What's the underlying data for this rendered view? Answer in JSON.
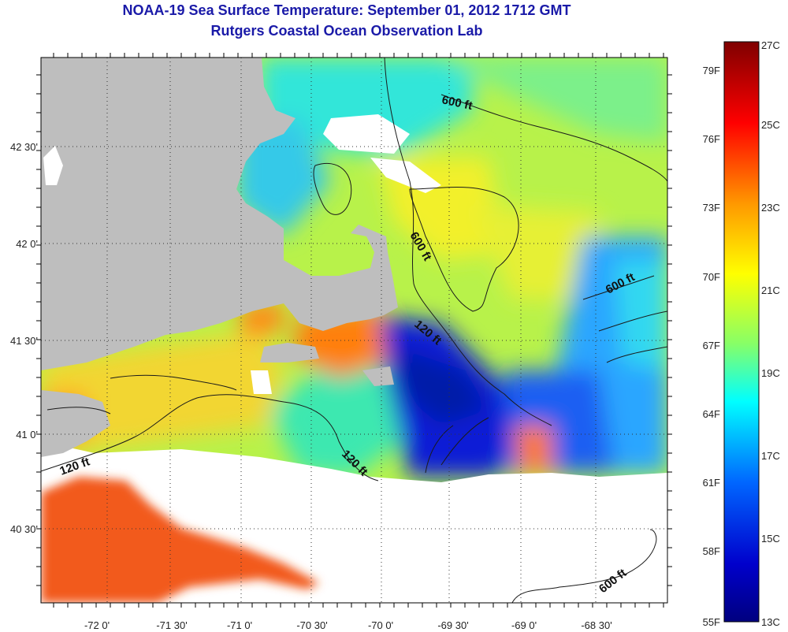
{
  "header": {
    "title": "NOAA-19 Sea Surface Temperature:  September 01, 2012 1712 GMT",
    "subtitle": "Rutgers Coastal Ocean Observation Lab"
  },
  "map": {
    "lon_ticks": [
      "-72 0'",
      "-71 30'",
      "-71 0'",
      "-70 30'",
      "-70 0'",
      "-69 30'",
      "-69 0'",
      "-68 30'"
    ],
    "lat_ticks": [
      "42 30'",
      "42 0'",
      "41 30'",
      "41 0'",
      "40 30'"
    ],
    "contour_labels": [
      "600 ft",
      "600 ft",
      "600 ft",
      "600 ft",
      "120 ft",
      "120 ft",
      "120 ft"
    ],
    "colors": {
      "land": "#bebebe",
      "no_data": "#ffffff",
      "contour": "#1a1a1a"
    }
  },
  "colorbar": {
    "fahrenheit_labels": [
      "79F",
      "76F",
      "73F",
      "70F",
      "67F",
      "64F",
      "61F",
      "58F",
      "55F"
    ],
    "celsius_labels": [
      "27C",
      "25C",
      "23C",
      "21C",
      "19C",
      "17C",
      "15C",
      "13C"
    ],
    "colors": [
      "#7f0000",
      "#ff0000",
      "#ff9900",
      "#ffff00",
      "#88ff66",
      "#00ffff",
      "#0066ff",
      "#0000cc",
      "#00007f"
    ]
  }
}
